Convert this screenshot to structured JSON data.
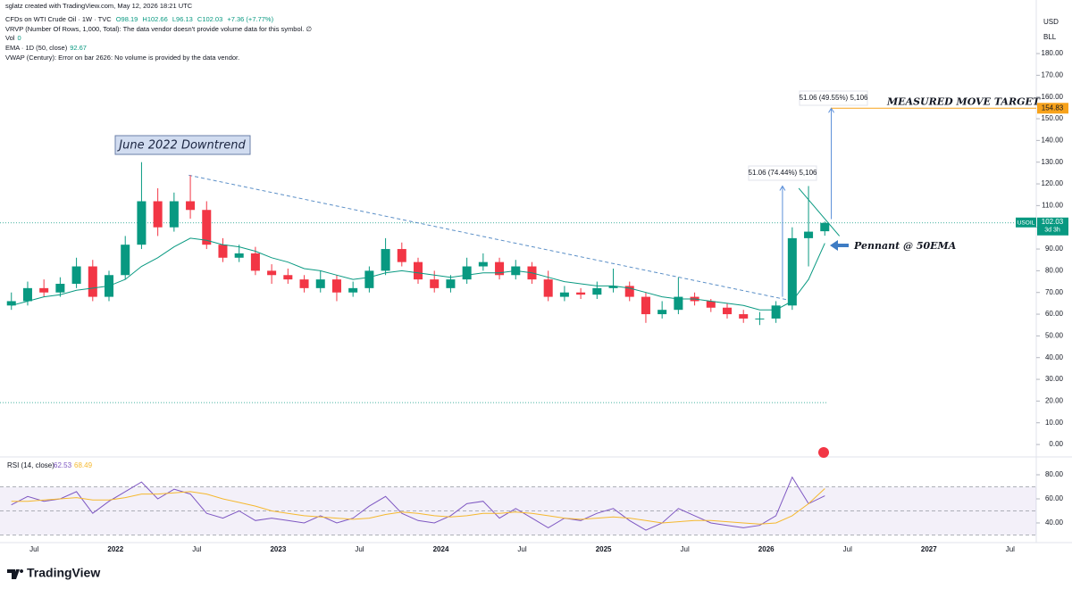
{
  "header": {
    "credit": "sglatz created with TradingView.com, May 12, 2026 18:21 UTC",
    "symbol": "CFDs on WTI Crude Oil · 1W · TVC",
    "ohlc": [
      "O98.19",
      "H102.66",
      "L96.13",
      "C102.03",
      "+7.36 (+7.77%)"
    ],
    "vrvp": "VRVP (Number Of Rows, 1,000, Total): The data vendor doesn't provide volume data for this symbol.  ∅",
    "vol_label": "Vol",
    "vol_value": "0",
    "ema_label": "EMA · 1D (50, close)",
    "ema_value": "92.67",
    "vwap": "VWAP (Century): Error on bar 2626: No volume is provided by the data vendor."
  },
  "currency": [
    "USD",
    "BLL"
  ],
  "footer": "TradingView",
  "chart_data": [
    {
      "type": "candlestick",
      "ticker": "USOIL",
      "countdown": "3d 3h",
      "x": [
        2021.36,
        2021.46,
        2021.56,
        2021.66,
        2021.76,
        2021.86,
        2021.96,
        2022.06,
        2022.16,
        2022.26,
        2022.36,
        2022.46,
        2022.56,
        2022.66,
        2022.76,
        2022.86,
        2022.96,
        2023.06,
        2023.16,
        2023.26,
        2023.36,
        2023.46,
        2023.56,
        2023.66,
        2023.76,
        2023.86,
        2023.96,
        2024.06,
        2024.16,
        2024.26,
        2024.36,
        2024.46,
        2024.56,
        2024.66,
        2024.76,
        2024.86,
        2024.96,
        2025.06,
        2025.16,
        2025.26,
        2025.36,
        2025.46,
        2025.56,
        2025.66,
        2025.76,
        2025.86,
        2025.96,
        2026.06,
        2026.16,
        2026.26,
        2026.36
      ],
      "open": [
        64,
        66,
        72,
        70,
        74,
        82,
        68,
        78,
        92,
        112,
        100,
        112,
        108,
        92,
        86,
        88,
        80,
        78,
        76,
        72,
        76,
        70,
        72,
        80,
        90,
        84,
        76,
        72,
        76,
        82,
        84,
        78,
        82,
        76,
        68,
        70,
        69,
        72,
        73,
        68,
        60,
        62,
        68,
        66,
        63,
        60,
        58,
        58,
        64,
        95,
        98.19
      ],
      "high": [
        70,
        75,
        76,
        77,
        86,
        85,
        80,
        96,
        130,
        118,
        116,
        124,
        112,
        95,
        92,
        91,
        83,
        81,
        78,
        80,
        78,
        75,
        82,
        95,
        93,
        86,
        80,
        78,
        86,
        88,
        86,
        85,
        84,
        80,
        73,
        72,
        75,
        81,
        75,
        70,
        66,
        77,
        70,
        67,
        65,
        62,
        61,
        66,
        100,
        119,
        102.66
      ],
      "low": [
        62,
        64,
        68,
        68,
        72,
        66,
        66,
        76,
        90,
        96,
        98,
        104,
        90,
        84,
        84,
        78,
        74,
        74,
        70,
        70,
        66,
        68,
        70,
        78,
        82,
        74,
        70,
        70,
        74,
        80,
        76,
        76,
        74,
        66,
        66,
        67,
        67,
        70,
        66,
        56,
        58,
        60,
        64,
        61,
        58,
        56,
        55,
        56,
        62,
        82,
        96.13
      ],
      "close": [
        66,
        72,
        70,
        74,
        82,
        68,
        78,
        92,
        112,
        100,
        112,
        108,
        92,
        86,
        88,
        80,
        78,
        76,
        72,
        76,
        70,
        72,
        80,
        90,
        84,
        76,
        72,
        76,
        82,
        84,
        78,
        82,
        76,
        68,
        70,
        69,
        72,
        73,
        68,
        60,
        62,
        68,
        66,
        63,
        60,
        58,
        58,
        64,
        95,
        98,
        102.03
      ],
      "up_color": "#089981",
      "down_color": "#f23645",
      "ema": {
        "color": "#089981",
        "values": [
          64,
          66,
          68,
          69,
          71,
          72,
          73,
          76,
          82,
          86,
          91,
          95,
          94,
          92,
          91,
          89,
          86,
          84,
          81,
          80,
          78,
          76,
          77,
          79,
          80,
          79,
          78,
          77,
          78,
          79,
          79,
          80,
          79,
          77,
          75,
          74,
          73,
          73,
          72,
          70,
          68,
          67,
          67,
          66,
          65,
          64,
          62,
          62,
          66,
          76,
          92.67
        ]
      },
      "xlim": [
        2021.29,
        2027.66
      ],
      "ylim": [
        -4.9,
        198.5
      ],
      "yticks": [
        {
          "value": 0,
          "label": "0.00"
        },
        {
          "value": 10,
          "label": "10.00"
        },
        {
          "value": 20,
          "label": "20.00"
        },
        {
          "value": 30,
          "label": "30.00"
        },
        {
          "value": 40,
          "label": "40.00"
        },
        {
          "value": 50,
          "label": "50.00"
        },
        {
          "value": 60,
          "label": "60.00"
        },
        {
          "value": 70,
          "label": "70.00"
        },
        {
          "value": 80,
          "label": "80.00"
        },
        {
          "value": 90,
          "label": "90.00"
        },
        {
          "value": 100,
          "label": "100.00"
        },
        {
          "value": 110,
          "label": "110.00"
        },
        {
          "value": 120,
          "label": "120.00"
        },
        {
          "value": 130,
          "label": "130.00"
        },
        {
          "value": 140,
          "label": "140.00"
        },
        {
          "value": 150,
          "label": "150.00"
        },
        {
          "value": 160,
          "label": "160.00"
        },
        {
          "value": 170,
          "label": "170.00"
        },
        {
          "value": 180,
          "label": "180.00"
        }
      ],
      "xticks": [
        {
          "value": 2021.5,
          "label": "Jul"
        },
        2022,
        {
          "value": 2022.5,
          "label": "Jul"
        },
        2023,
        {
          "value": 2023.5,
          "label": "Jul"
        },
        2024,
        {
          "value": 2024.5,
          "label": "Jul"
        },
        2025,
        {
          "value": 2025.5,
          "label": "Jul"
        },
        2026,
        {
          "value": 2026.5,
          "label": "Jul"
        },
        2027,
        {
          "value": 2027.5,
          "label": "Jul"
        }
      ],
      "grid": false,
      "downtrend_label": "June 2022 Downtrend",
      "trendline": {
        "x": [
          2022.45,
          2026.17
        ],
        "y": [
          124,
          66
        ]
      },
      "pennant": {
        "x": [
          2026.2,
          2026.45
        ],
        "y": [
          118,
          96
        ]
      },
      "pennant_label": "Pennant @ 50EMA",
      "horizontal_line": 19.3,
      "target": 154.83,
      "target_label": "MEASURED MOVE TARGET",
      "measures": [
        {
          "label": "51.06 (74.44%) 5,106",
          "x": 2026.1,
          "from": 68,
          "to": 119
        },
        {
          "label": "51.06 (49.55%) 5,106",
          "x": 2026.4,
          "from": 103.77,
          "to": 154.83
        }
      ]
    },
    {
      "type": "line",
      "title": "RSI (14, close)",
      "x": [
        2021.36,
        2021.46,
        2021.56,
        2021.66,
        2021.76,
        2021.86,
        2021.96,
        2022.06,
        2022.16,
        2022.26,
        2022.36,
        2022.46,
        2022.56,
        2022.66,
        2022.76,
        2022.86,
        2022.96,
        2023.06,
        2023.16,
        2023.26,
        2023.36,
        2023.46,
        2023.56,
        2023.66,
        2023.76,
        2023.86,
        2023.96,
        2024.06,
        2024.16,
        2024.26,
        2024.36,
        2024.46,
        2024.56,
        2024.66,
        2024.76,
        2024.86,
        2024.96,
        2025.06,
        2025.16,
        2025.26,
        2025.36,
        2025.46,
        2025.56,
        2025.66,
        2025.76,
        2025.86,
        2025.96,
        2026.06,
        2026.16,
        2026.26,
        2026.36
      ],
      "series": [
        {
          "color": "#7e57c2",
          "last_label": "62.53",
          "values": [
            55,
            62,
            58,
            60,
            66,
            48,
            58,
            66,
            74,
            60,
            68,
            64,
            48,
            44,
            50,
            42,
            44,
            42,
            40,
            46,
            40,
            44,
            54,
            62,
            48,
            42,
            40,
            46,
            56,
            58,
            44,
            52,
            44,
            36,
            44,
            42,
            48,
            52,
            42,
            34,
            40,
            52,
            46,
            40,
            38,
            36,
            38,
            46,
            78,
            56,
            62.53
          ]
        },
        {
          "color": "#f5b82e",
          "last_label": "68.49",
          "values": [
            58,
            58,
            59,
            60,
            61,
            59,
            59,
            61,
            64,
            64,
            65,
            66,
            64,
            60,
            57,
            54,
            50,
            48,
            46,
            45,
            44,
            43,
            44,
            47,
            49,
            48,
            46,
            45,
            46,
            48,
            48,
            49,
            48,
            46,
            44,
            43,
            44,
            45,
            44,
            42,
            40,
            41,
            42,
            42,
            41,
            40,
            39,
            40,
            46,
            56,
            68.49
          ]
        }
      ],
      "xlim": [
        2021.29,
        2027.66
      ],
      "ylim": [
        25.9,
        92.6
      ],
      "yticks": [
        {
          "value": 40,
          "label": "40.00"
        },
        {
          "value": 60,
          "label": "60.00"
        },
        {
          "value": 80,
          "label": "80.00"
        }
      ],
      "levels": [
        70,
        50,
        30
      ]
    }
  ]
}
